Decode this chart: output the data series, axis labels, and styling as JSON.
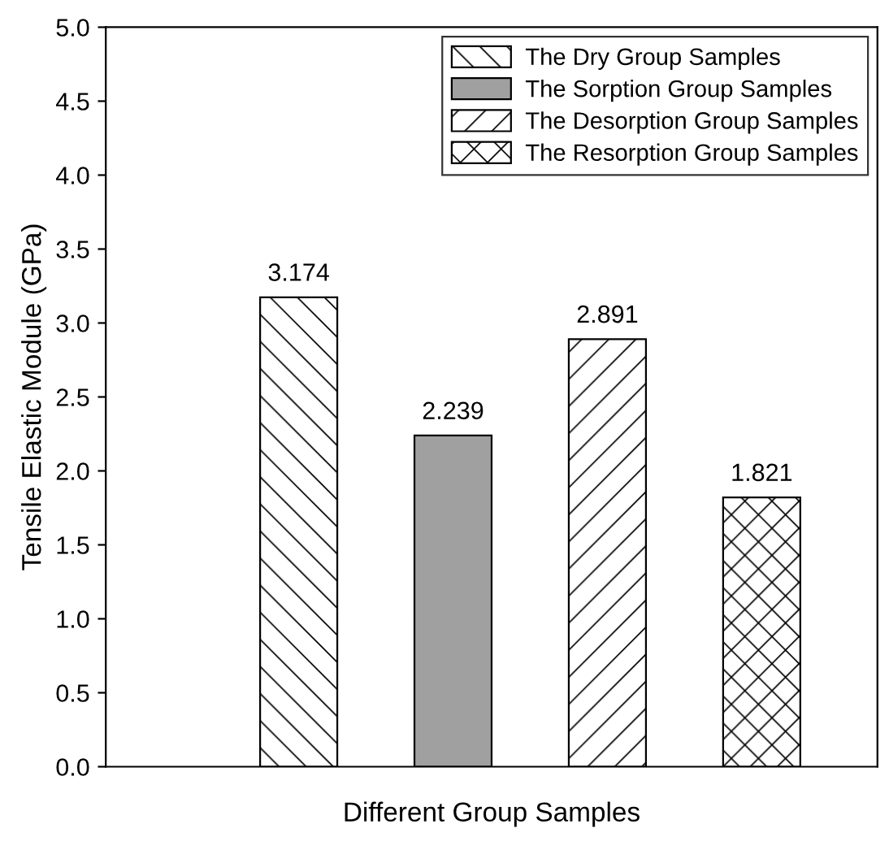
{
  "chart_data": {
    "type": "bar",
    "xlabel": "Different Group Samples",
    "ylabel": "Tensile Elastic Module (GPa)",
    "categories": [
      null,
      null,
      null,
      null
    ],
    "series": [
      {
        "name": "The Dry Group Samples",
        "color": "#000000",
        "values": [
          3.174,
          null,
          null,
          null
        ]
      },
      {
        "name": "The Sorption Group Samples",
        "color": "#a0a0a0",
        "values": [
          null,
          2.239,
          null,
          null
        ]
      },
      {
        "name": "The Desorption Group Samples",
        "color": "#000000",
        "values": [
          null,
          null,
          2.891,
          null
        ]
      },
      {
        "name": "The Resorption Group Samples",
        "color": "#000000",
        "values": [
          null,
          null,
          null,
          1.821
        ]
      }
    ],
    "ylim": [
      0,
      5
    ],
    "yticks": [
      {
        "value": 0,
        "label": "0.0"
      },
      {
        "value": 0.5,
        "label": "0.5"
      },
      {
        "value": 1,
        "label": "1.0"
      },
      {
        "value": 1.5,
        "label": "1.5"
      },
      {
        "value": 2,
        "label": "2.0"
      },
      {
        "value": 2.5,
        "label": "2.5"
      },
      {
        "value": 3,
        "label": "3.0"
      },
      {
        "value": 3.5,
        "label": "3.5"
      },
      {
        "value": 4,
        "label": "4.0"
      },
      {
        "value": 4.5,
        "label": "4.5"
      },
      {
        "value": 5,
        "label": "5.0"
      }
    ],
    "data_labels": true,
    "legend": "top right",
    "grid": false
  }
}
